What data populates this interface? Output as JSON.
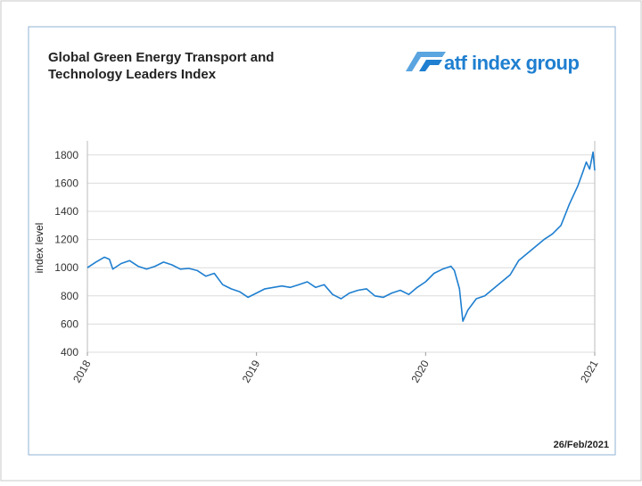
{
  "chart_data": {
    "type": "line",
    "title_lines": [
      "Global Green Energy Transport and",
      "Technology Leaders Index"
    ],
    "logo_text": "atf index group",
    "date_note": "26/Feb/2021",
    "y_label": "index level",
    "xlim": [
      2018,
      2021
    ],
    "xticks": [
      2018,
      2019,
      2020,
      2021
    ],
    "ylim": [
      400,
      1900
    ],
    "yticks": [
      400,
      600,
      800,
      1000,
      1200,
      1400,
      1600,
      1800
    ],
    "grid": true,
    "series": [
      {
        "name": "Global Green Energy Transport and Technology Leaders Index",
        "color": "#1f7fd0",
        "x": [
          2018.0,
          2018.05,
          2018.1,
          2018.13,
          2018.15,
          2018.2,
          2018.25,
          2018.3,
          2018.35,
          2018.4,
          2018.45,
          2018.5,
          2018.55,
          2018.6,
          2018.65,
          2018.7,
          2018.75,
          2018.8,
          2018.85,
          2018.9,
          2018.95,
          2019.0,
          2019.05,
          2019.1,
          2019.15,
          2019.2,
          2019.25,
          2019.3,
          2019.35,
          2019.4,
          2019.45,
          2019.5,
          2019.55,
          2019.6,
          2019.65,
          2019.7,
          2019.75,
          2019.8,
          2019.85,
          2019.9,
          2019.95,
          2020.0,
          2020.05,
          2020.1,
          2020.15,
          2020.17,
          2020.2,
          2020.22,
          2020.25,
          2020.3,
          2020.35,
          2020.4,
          2020.45,
          2020.5,
          2020.55,
          2020.6,
          2020.65,
          2020.7,
          2020.75,
          2020.8,
          2020.85,
          2020.9,
          2020.93,
          2020.95,
          2020.97,
          2020.99,
          2021.0
        ],
        "values": [
          1000,
          1040,
          1075,
          1060,
          990,
          1030,
          1050,
          1010,
          990,
          1010,
          1040,
          1020,
          990,
          995,
          980,
          940,
          960,
          880,
          850,
          830,
          790,
          820,
          850,
          860,
          870,
          860,
          880,
          900,
          860,
          880,
          810,
          780,
          820,
          840,
          850,
          800,
          790,
          820,
          840,
          810,
          860,
          900,
          960,
          990,
          1010,
          980,
          850,
          620,
          700,
          780,
          800,
          850,
          900,
          950,
          1050,
          1100,
          1150,
          1200,
          1240,
          1300,
          1450,
          1580,
          1680,
          1750,
          1700,
          1820,
          1690
        ]
      }
    ]
  }
}
